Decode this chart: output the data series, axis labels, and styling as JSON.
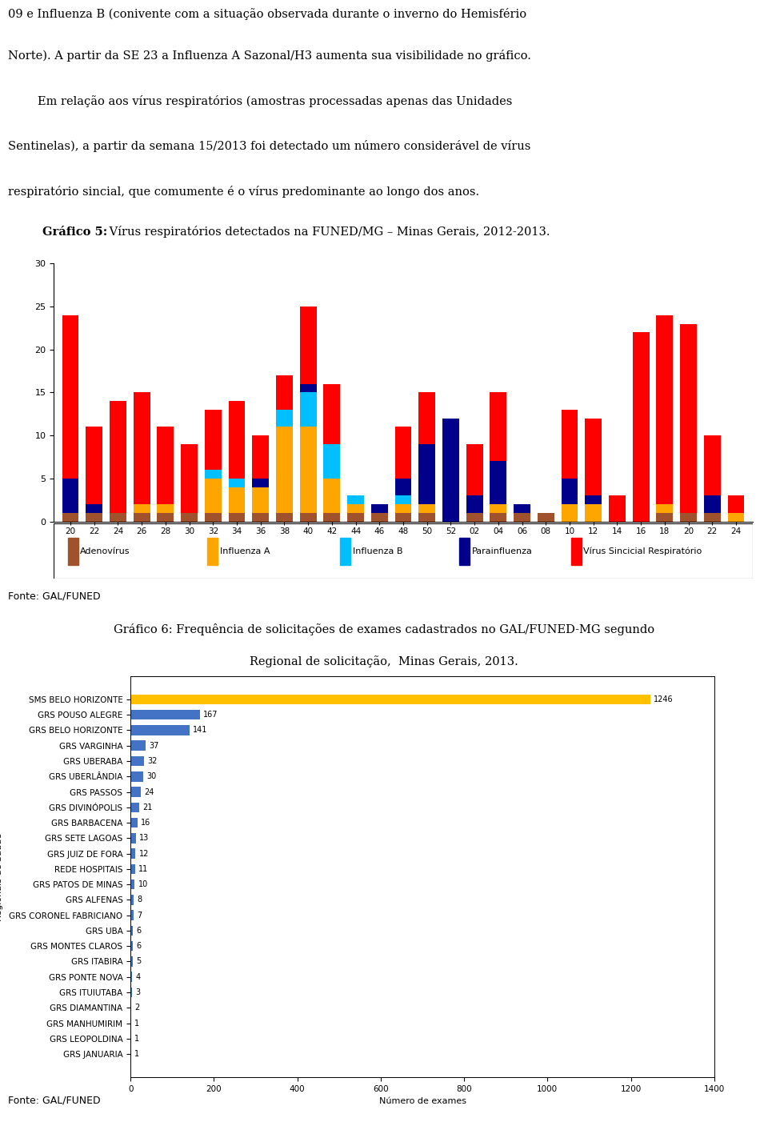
{
  "text_top": [
    "09 e Influenza B (conivente com a situação observada durante o inverno do Hemisfério",
    "Norte). A partir da SE 23 a Influenza A Sazonal/H3 aumenta sua visibilidade no gráfico.",
    "        Em relação aos vírus respiratórios (amostras processadas apenas das Unidades",
    "Sentinelas), a partir da semana 15/2013 foi detectado um número considerável de vírus",
    "respiratório sincial, que comumente é o vírus predominante ao longo dos anos."
  ],
  "grafico5_title_bold": "Gráfico 5:",
  "grafico5_title_rest": " Vírus respiratórios detectados na FUNED/MG – Minas Gerais, 2012-2013.",
  "weeks": [
    "20",
    "22",
    "24",
    "26",
    "28",
    "30",
    "32",
    "34",
    "36",
    "38",
    "40",
    "42",
    "44",
    "46",
    "48",
    "50",
    "52",
    "02",
    "04",
    "06",
    "08",
    "10",
    "12",
    "14",
    "16",
    "18",
    "20",
    "22",
    "24"
  ],
  "adenovirus": [
    1,
    1,
    1,
    1,
    1,
    1,
    1,
    1,
    1,
    1,
    1,
    1,
    1,
    1,
    1,
    1,
    0,
    1,
    1,
    1,
    1,
    0,
    0,
    0,
    0,
    1,
    1,
    1,
    0
  ],
  "influenza_a": [
    0,
    0,
    0,
    1,
    1,
    0,
    4,
    3,
    3,
    10,
    10,
    4,
    1,
    0,
    1,
    1,
    0,
    0,
    1,
    0,
    0,
    2,
    2,
    0,
    0,
    1,
    0,
    0,
    1
  ],
  "influenza_b": [
    0,
    0,
    0,
    0,
    0,
    0,
    1,
    1,
    0,
    2,
    4,
    4,
    1,
    0,
    1,
    0,
    0,
    0,
    0,
    0,
    0,
    0,
    0,
    0,
    0,
    0,
    0,
    0,
    0
  ],
  "parainfluenza": [
    4,
    1,
    0,
    0,
    0,
    0,
    0,
    0,
    1,
    0,
    1,
    0,
    0,
    1,
    2,
    7,
    12,
    2,
    5,
    1,
    0,
    3,
    1,
    0,
    0,
    0,
    0,
    2,
    0
  ],
  "vsr": [
    19,
    9,
    13,
    13,
    9,
    8,
    7,
    9,
    5,
    4,
    9,
    7,
    0,
    0,
    6,
    6,
    0,
    6,
    8,
    0,
    0,
    8,
    9,
    3,
    22,
    22,
    22,
    7,
    2
  ],
  "ylim": [
    0,
    30
  ],
  "yticks": [
    0,
    5,
    10,
    15,
    20,
    25,
    30
  ],
  "legend_labels": [
    "Adenovírus",
    "Influenza A",
    "Influenza B",
    "Parainfluenza",
    "Vírus Sincicial Respiratório"
  ],
  "legend_colors": [
    "#a0522d",
    "#ffa500",
    "#00bfff",
    "#00008b",
    "#ff0000"
  ],
  "fonte_grafico5": "Fonte: GAL/FUNED",
  "grafico6_title1": "Gráfico 6",
  "grafico6_title2": ": Frequência de ",
  "grafico6_title3": "solicitações de exames cadastrados",
  "grafico6_title4": " no GAL/FUNED-MG segundo",
  "grafico6_subtitle": "Regional de solicitação,  Minas Gerais, 2013.",
  "grafico6_categories": [
    "SMS BELO HORIZONTE",
    "GRS POUSO ALEGRE",
    "GRS BELO HORIZONTE",
    "GRS VARGINHA",
    "GRS UBERABA",
    "GRS UBERLÂNDIA",
    "GRS PASSOS",
    "GRS DIVINÓPOLIS",
    "GRS BARBACENA",
    "GRS SETE LAGOAS",
    "GRS JUIZ DE FORA",
    "REDE HOSPITAIS",
    "GRS PATOS DE MINAS",
    "GRS ALFENAS",
    "GRS CORONEL FABRICIANO",
    "GRS UBA",
    "GRS MONTES CLAROS",
    "GRS ITABIRA",
    "GRS PONTE NOVA",
    "GRS ITUIUTABA",
    "GRS DIAMANTINA",
    "GRS MANHUMIRIM",
    "GRS LEOPOLDINA",
    "GRS JANUARIA"
  ],
  "grafico6_values": [
    1246,
    167,
    141,
    37,
    32,
    30,
    24,
    21,
    16,
    13,
    12,
    11,
    10,
    8,
    7,
    6,
    6,
    5,
    4,
    3,
    2,
    1,
    1,
    1
  ],
  "grafico6_bar_color": "#4472c4",
  "grafico6_highlight_color": "#ffc000",
  "grafico6_xlabel": "Número de exames",
  "grafico6_xlim": [
    0,
    1400
  ],
  "grafico6_xticks": [
    0,
    200,
    400,
    600,
    800,
    1000,
    1200,
    1400
  ],
  "fonte_grafico6": "Fonte: GAL/FUNED"
}
